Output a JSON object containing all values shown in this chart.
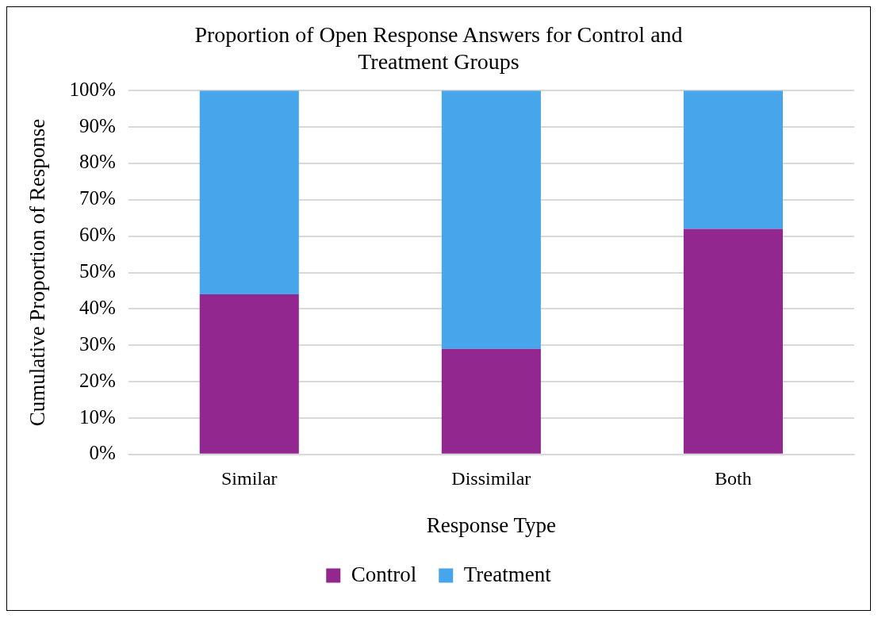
{
  "chart_data": {
    "type": "bar",
    "title": "Proportion of Open Response Answers for Control and Treatment Groups",
    "xlabel": "Response Type",
    "ylabel": "Cumulative Proportion of Response",
    "categories": [
      "Similar",
      "Dissimilar",
      "Both"
    ],
    "series": [
      {
        "name": "Control",
        "color": "#92278f",
        "values": [
          44,
          29,
          62
        ]
      },
      {
        "name": "Treatment",
        "color": "#46a5eb",
        "values": [
          56,
          71,
          38
        ]
      }
    ],
    "stacked": true,
    "ylim": [
      0,
      100
    ],
    "yticks": [
      {
        "value": 0,
        "label": "0%"
      },
      {
        "value": 10,
        "label": "10%"
      },
      {
        "value": 20,
        "label": "20%"
      },
      {
        "value": 30,
        "label": "30%"
      },
      {
        "value": 40,
        "label": "40%"
      },
      {
        "value": 50,
        "label": "50%"
      },
      {
        "value": 60,
        "label": "60%"
      },
      {
        "value": 70,
        "label": "70%"
      },
      {
        "value": 80,
        "label": "80%"
      },
      {
        "value": 90,
        "label": "90%"
      },
      {
        "value": 100,
        "label": "100%"
      }
    ],
    "grid": "y",
    "legend": "bottom"
  }
}
